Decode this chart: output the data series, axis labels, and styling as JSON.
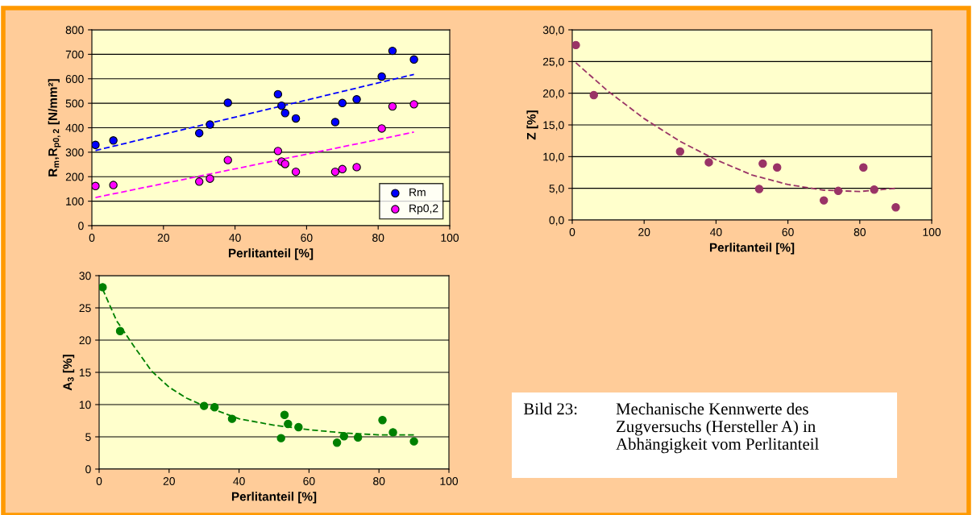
{
  "chart_data": [
    {
      "type": "scatter",
      "xlabel": "Perlitanteil [%]",
      "ylabel": "R$_{m}$,R$_{p0,2}$ [N/mm²]",
      "xlim": [
        0,
        100
      ],
      "ylim": [
        0,
        800
      ],
      "xticks": [
        0,
        20,
        40,
        60,
        80,
        100
      ],
      "yticks": [
        0,
        100,
        200,
        300,
        400,
        500,
        600,
        700,
        800
      ],
      "grid": "y",
      "legend": "bottom right",
      "marker": "circle",
      "series": [
        {
          "name": "Rm",
          "color": "#0000ff",
          "x": [
            1,
            6,
            30,
            33,
            38,
            52,
            53,
            54,
            57,
            68,
            70,
            74,
            81,
            84,
            90
          ],
          "values": [
            330,
            348,
            378,
            413,
            502,
            537,
            490,
            460,
            438,
            423,
            501,
            516,
            609,
            714,
            679
          ]
        },
        {
          "name": "Rp0,2",
          "color": "#ff00ff",
          "x": [
            1,
            6,
            30,
            33,
            38,
            52,
            53,
            54,
            57,
            68,
            70,
            74,
            81,
            84,
            90
          ],
          "values": [
            162,
            166,
            180,
            192,
            268,
            305,
            262,
            252,
            220,
            220,
            231,
            239,
            397,
            487,
            496
          ]
        },
        {
          "type": "line",
          "line_style": "dashed",
          "marker": "none",
          "color": "#0000ff",
          "x": [
            1,
            90
          ],
          "values": [
            307,
            618
          ]
        },
        {
          "type": "line",
          "line_style": "dashed",
          "marker": "none",
          "color": "#ff00ff",
          "x": [
            1,
            90
          ],
          "values": [
            115,
            382
          ]
        }
      ]
    },
    {
      "type": "scatter",
      "xlabel": "Perlitanteil [%]",
      "ylabel": "Z [%]",
      "xlim": [
        0,
        100
      ],
      "ylim": [
        0,
        30
      ],
      "xticks": [
        0,
        20,
        40,
        60,
        80,
        100
      ],
      "yticks": [
        {
          "value": 0,
          "label": "0,0"
        },
        {
          "value": 5,
          "label": "5,0"
        },
        {
          "value": 10,
          "label": "10,0"
        },
        {
          "value": 15,
          "label": "15,0"
        },
        {
          "value": 20,
          "label": "20,0"
        },
        {
          "value": 25,
          "label": "25,0"
        },
        {
          "value": 30,
          "label": "30,0"
        }
      ],
      "grid": "y",
      "marker": "circle",
      "series": [
        {
          "color": "#993366",
          "x": [
            1,
            6,
            30,
            38,
            52,
            53,
            57,
            70,
            74,
            81,
            84,
            90
          ],
          "values": [
            27.6,
            19.7,
            10.8,
            9.1,
            4.9,
            8.9,
            8.3,
            3.1,
            4.6,
            8.3,
            4.8,
            2.0
          ]
        },
        {
          "type": "line",
          "line_style": "dashed",
          "marker": "none",
          "color": "#993366",
          "x": [
            1,
            10,
            20,
            30,
            40,
            50,
            60,
            70,
            80,
            90
          ],
          "values": [
            24.8,
            20.3,
            16.0,
            12.4,
            9.5,
            7.1,
            5.6,
            4.7,
            4.5,
            5.0
          ]
        }
      ]
    },
    {
      "type": "scatter",
      "xlabel": "Perlitanteil [%]",
      "ylabel": "A$_{3}$ [%]",
      "xlim": [
        0,
        100
      ],
      "ylim": [
        0,
        30
      ],
      "xticks": [
        0,
        20,
        40,
        60,
        80,
        100
      ],
      "yticks": [
        0,
        5,
        10,
        15,
        20,
        25,
        30
      ],
      "grid": "y",
      "marker": "circle",
      "series": [
        {
          "color": "#008000",
          "x": [
            1,
            6,
            30,
            33,
            38,
            52,
            53,
            54,
            57,
            68,
            70,
            74,
            81,
            84,
            90
          ],
          "values": [
            28.2,
            21.4,
            9.8,
            9.6,
            7.8,
            4.8,
            8.4,
            7.0,
            6.5,
            4.1,
            5.1,
            4.9,
            7.6,
            5.7,
            4.3
          ]
        },
        {
          "type": "line",
          "line_style": "dashed",
          "marker": "none",
          "color": "#008000",
          "x": [
            1,
            5,
            10,
            15,
            20,
            25,
            30,
            40,
            50,
            60,
            70,
            80,
            90
          ],
          "values": [
            27.9,
            23.0,
            19.0,
            15.2,
            12.7,
            11.0,
            9.8,
            7.8,
            6.8,
            6.1,
            5.6,
            5.3,
            5.3
          ]
        }
      ]
    },
    {
      "type": "other",
      "annotations": [
        "Bild 23:",
        "Mechanische Kennwerte des\nZugversuchs (Hersteller A) in\nAbhängigkeit vom Perlitanteil"
      ]
    }
  ]
}
